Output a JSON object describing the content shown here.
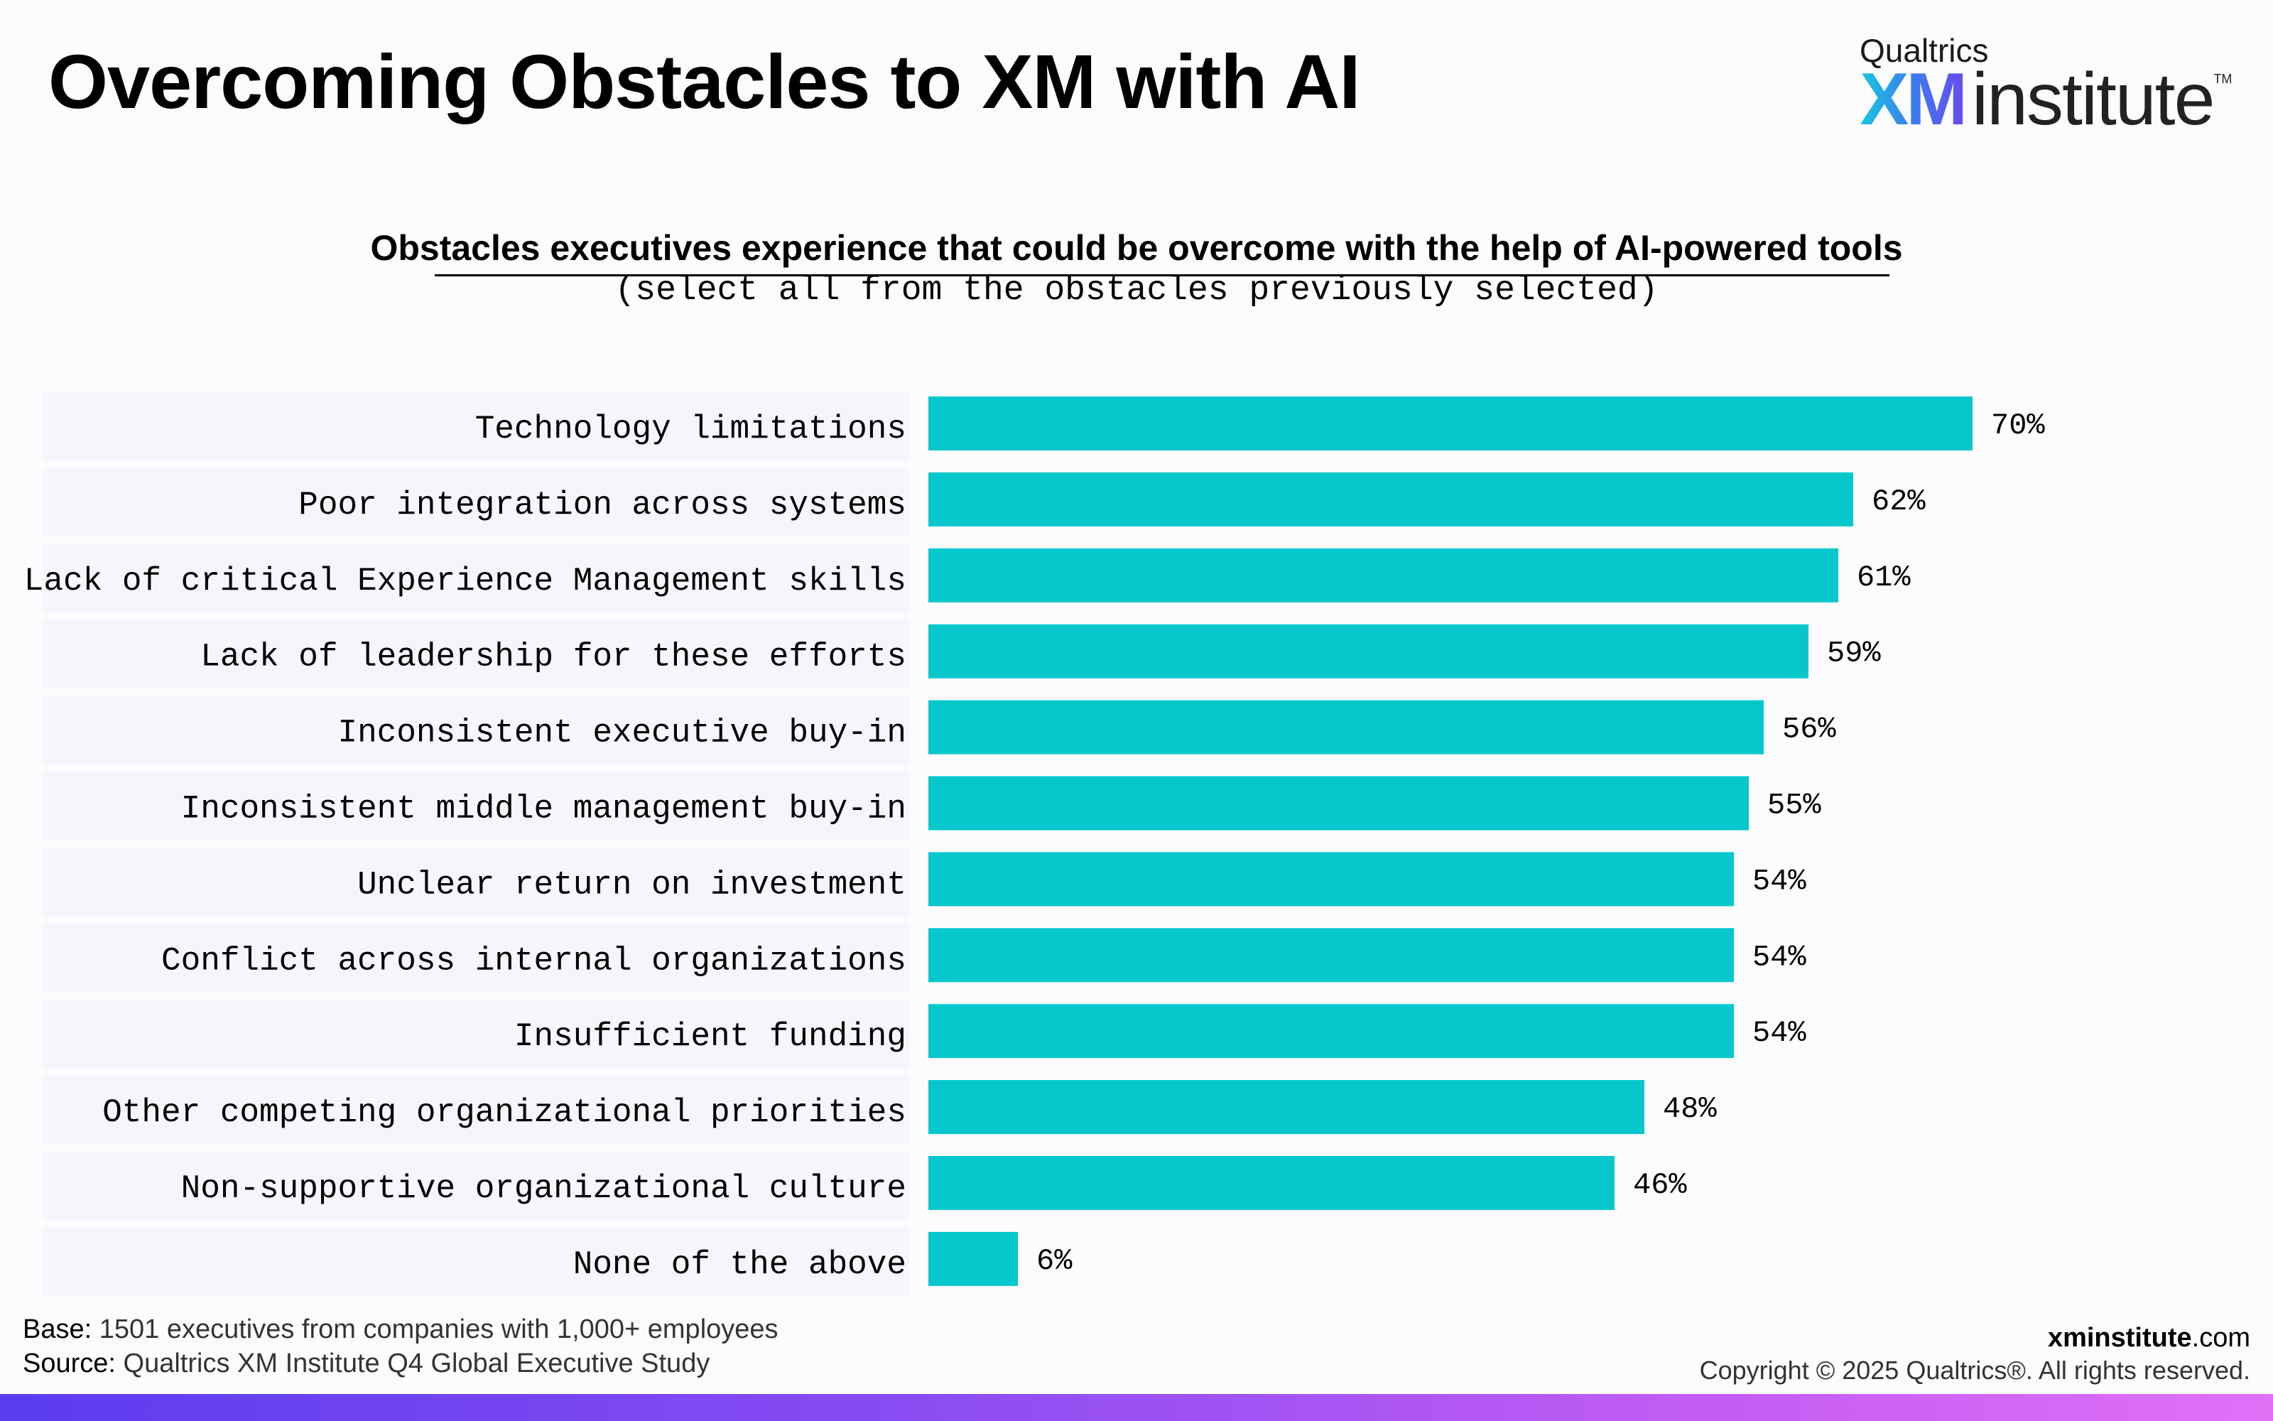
{
  "header": {
    "title": "Overcoming Obstacles to XM with AI"
  },
  "logo": {
    "company": "Qualtrics",
    "brand_xm": "XM",
    "brand_institute": "institute",
    "trademark": "TM"
  },
  "colors": {
    "bar": "#05c7cc",
    "row_band": "#f5f6fb",
    "accent_gradient_start": "#5b3cf0",
    "accent_gradient_end": "#e070f6"
  },
  "chart_data": {
    "type": "bar",
    "orientation": "horizontal",
    "title": "Obstacles executives experience that could be overcome with the help of AI-powered tools",
    "subtitle": "(select all from the obstacles previously selected)",
    "categories": [
      "Technology limitations",
      "Poor integration across systems",
      "Lack of critical Experience Management skills",
      "Lack of leadership for these efforts",
      "Inconsistent executive buy-in",
      "Inconsistent middle management buy-in",
      "Unclear return on investment",
      "Conflict across internal organizations",
      "Insufficient funding",
      "Other competing organizational priorities",
      "Non-supportive organizational culture",
      "None of the above"
    ],
    "values": [
      70,
      62,
      61,
      59,
      56,
      55,
      54,
      54,
      54,
      48,
      46,
      6
    ],
    "value_labels": [
      "70%",
      "62%",
      "61%",
      "59%",
      "56%",
      "55%",
      "54%",
      "54%",
      "54%",
      "48%",
      "46%",
      "6%"
    ],
    "unit": "%",
    "xlim": [
      0,
      100
    ],
    "grid": false,
    "legend": "none"
  },
  "footer": {
    "base_label": "Base:",
    "base_text": " 1501 executives from companies with 1,000+ employees",
    "source_label": "Source:",
    "source_text": " Qualtrics XM Institute Q4 Global Executive Study",
    "site_bold": "xminstitute",
    "site_rest": ".com",
    "copyright": "Copyright © 2025 Qualtrics®. All rights reserved."
  }
}
